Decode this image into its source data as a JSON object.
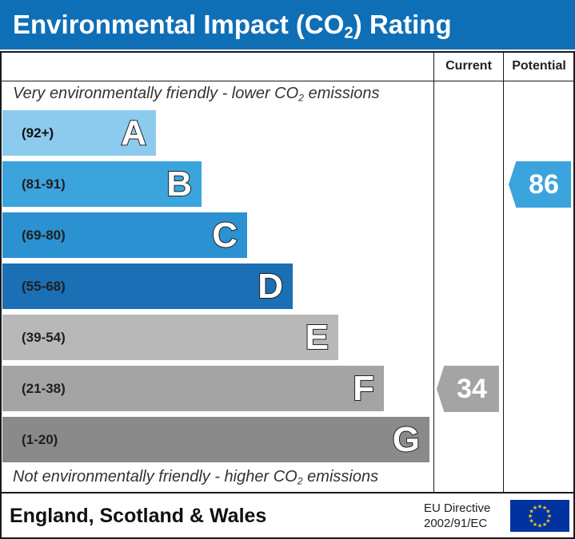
{
  "title": {
    "prefix": "Environmental Impact (CO",
    "subscript": "2",
    "suffix": ") Rating"
  },
  "headers": {
    "current": "Current",
    "potential": "Potential"
  },
  "notes": {
    "top_prefix": "Very environmentally friendly - lower CO",
    "top_sub": "2",
    "top_suffix": " emissions",
    "bottom_prefix": "Not environmentally friendly - higher CO",
    "bottom_sub": "2",
    "bottom_suffix": " emissions"
  },
  "colors": {
    "title_bar": "#0f6fb6",
    "A": "#8ccbee",
    "B": "#3ba4dd",
    "C": "#2b91d1",
    "D": "#1a6fb5",
    "E": "#b8b8b8",
    "F": "#a4a4a4",
    "G": "#8a8a8a",
    "potential_arrow": "#3ba4dd",
    "current_arrow": "#a4a4a4",
    "eu_flag": "#0033a0",
    "eu_stars": "#ffcc00"
  },
  "chart_data": {
    "type": "bar",
    "categories": [
      "A",
      "B",
      "C",
      "D",
      "E",
      "F",
      "G"
    ],
    "ranges": [
      "(92+)",
      "(81-91)",
      "(69-80)",
      "(55-68)",
      "(39-54)",
      "(21-38)",
      "(1-20)"
    ],
    "current": {
      "value": 34,
      "band": "F"
    },
    "potential": {
      "value": 86,
      "band": "B"
    }
  },
  "footer": {
    "region": "England, Scotland & Wales",
    "directive_line1": "EU Directive",
    "directive_line2": "2002/91/EC",
    "flag_icon": "eu-flag-icon"
  }
}
